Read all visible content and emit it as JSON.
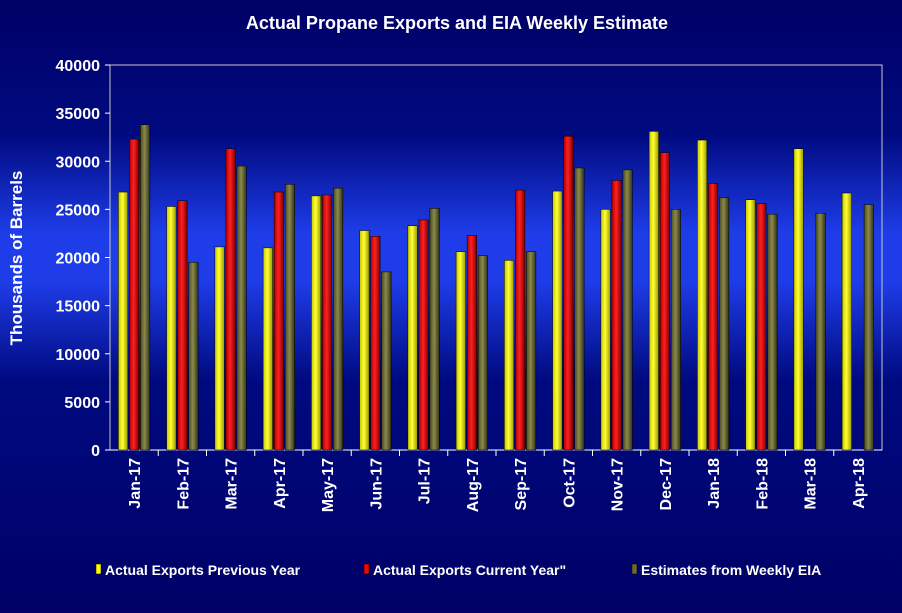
{
  "chart_data": {
    "type": "bar",
    "title": "Actual Propane Exports and EIA Weekly Estimate",
    "ylabel": "Thousands of Barrels",
    "xlabel": "",
    "ylim": [
      0,
      40000
    ],
    "yticks": [
      0,
      5000,
      10000,
      15000,
      20000,
      25000,
      30000,
      35000,
      40000
    ],
    "grid": false,
    "legend_position": "bottom",
    "categories": [
      "Jan-17",
      "Feb-17",
      "Mar-17",
      "Apr-17",
      "May-17",
      "Jun-17",
      "Jul-17",
      "Aug-17",
      "Sep-17",
      "Oct-17",
      "Nov-17",
      "Dec-17",
      "Jan-18",
      "Feb-18",
      "Mar-18",
      "Apr-18"
    ],
    "series": [
      {
        "name": "Actual Exports Previous Year",
        "color": "#ffff00",
        "values": [
          26800,
          25300,
          21100,
          21000,
          26400,
          22800,
          23300,
          20600,
          19700,
          26900,
          25000,
          33100,
          32200,
          26000,
          31300,
          26700
        ]
      },
      {
        "name": "Actual Exports Current Year\"",
        "color": "#ff0000",
        "values": [
          32300,
          25900,
          31300,
          26800,
          26500,
          22200,
          23900,
          22300,
          27000,
          32600,
          28000,
          30900,
          27700,
          25600,
          null,
          null
        ]
      },
      {
        "name": "Estimates from Weekly EIA",
        "color": "#6b6b33",
        "values": [
          33800,
          19500,
          29500,
          27600,
          27200,
          18500,
          25100,
          20200,
          20600,
          29300,
          29100,
          25000,
          26200,
          24500,
          24600,
          25500
        ]
      }
    ]
  }
}
